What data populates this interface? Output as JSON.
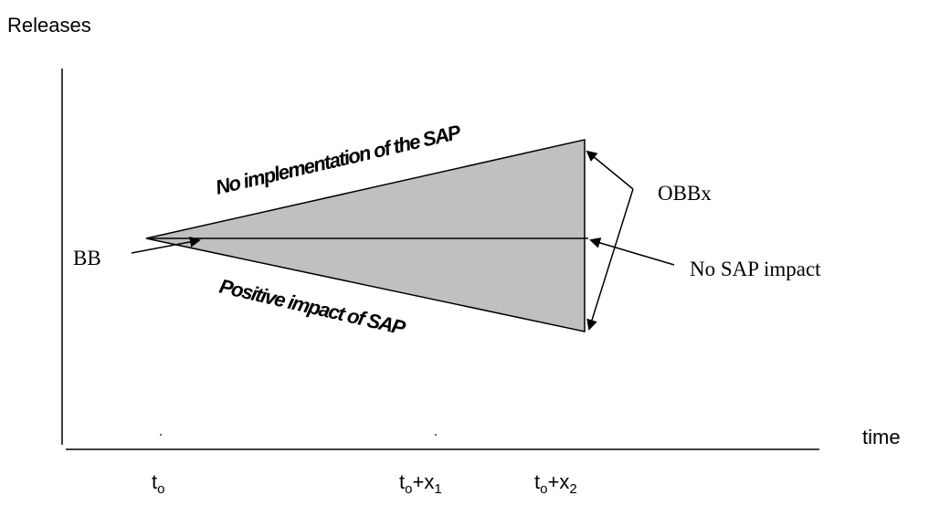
{
  "diagram": {
    "y_axis_label": "Releases",
    "x_axis_label": "time",
    "labels": {
      "baseline": "BB",
      "outcome": "OBBx",
      "no_impact": "No SAP impact",
      "upper_path": "No implementation of the SAP",
      "lower_path": "Positive impact of SAP"
    },
    "ticks": [
      {
        "base": "t",
        "sub": "o",
        "plus": "",
        "var": "",
        "var_sub": ""
      },
      {
        "base": "t",
        "sub": "o",
        "plus": "+",
        "var": "x",
        "var_sub": "1"
      },
      {
        "base": "t",
        "sub": "o",
        "plus": "+",
        "var": "x",
        "var_sub": "2"
      }
    ],
    "colors": {
      "fill": "#c0c0c0",
      "stroke": "#000000",
      "text": "#000000"
    }
  }
}
